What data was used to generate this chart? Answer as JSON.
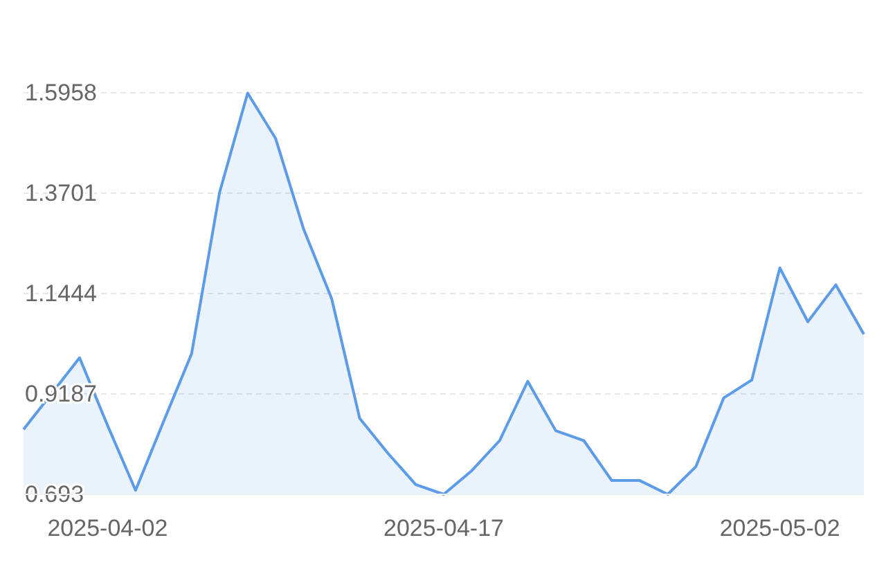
{
  "chart_data": {
    "type": "area",
    "categories": [
      null,
      null,
      null,
      "2025-04-02",
      null,
      null,
      null,
      null,
      null,
      null,
      null,
      null,
      null,
      null,
      null,
      "2025-04-17",
      null,
      null,
      null,
      null,
      null,
      null,
      null,
      null,
      null,
      null,
      null,
      "2025-05-02",
      null,
      null,
      null
    ],
    "series": [
      {
        "color": "#5b9be8",
        "values": [
          0.839,
          0.919,
          1.0,
          0.848,
          0.702,
          0.857,
          1.009,
          1.372,
          1.595,
          1.493,
          1.289,
          1.133,
          0.864,
          0.786,
          0.715,
          0.693,
          0.746,
          0.814,
          0.947,
          0.836,
          0.814,
          0.724,
          0.724,
          0.693,
          0.755,
          0.91,
          0.95,
          1.202,
          1.081,
          1.164,
          1.053
        ]
      }
    ],
    "ylim": [
      0.693,
      1.5958
    ],
    "yticks": [
      0.693,
      0.9187,
      1.1444,
      1.3701,
      1.5958
    ],
    "grid": "y",
    "marker": "none"
  }
}
